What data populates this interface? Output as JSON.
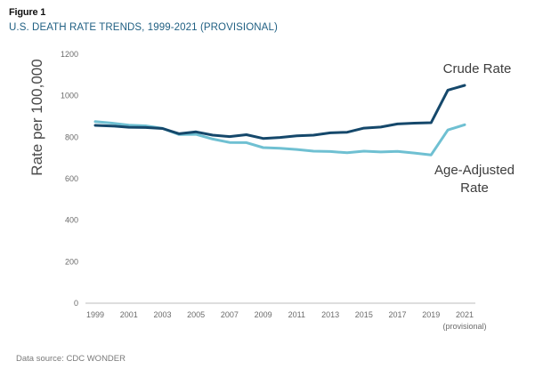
{
  "figure_label": "Figure 1",
  "title": "U.S. DEATH RATE TRENDS, 1999-2021 (PROVISIONAL)",
  "source": "Data source: CDC WONDER",
  "chart_data": {
    "type": "line",
    "title": "U.S. DEATH RATE TRENDS, 1999-2021 (PROVISIONAL)",
    "ylabel": "Rate per 100,000",
    "xlabel": "",
    "ylim": [
      0,
      1200
    ],
    "yticks": [
      "0",
      "200",
      "400",
      "600",
      "800",
      "1000",
      "1200"
    ],
    "xlim": [
      1999,
      2021
    ],
    "xticks": [
      "1999",
      "2001",
      "2003",
      "2005",
      "2007",
      "2009",
      "2011",
      "2013",
      "2015",
      "2017",
      "2019",
      "2021"
    ],
    "x_note": "(provisional)",
    "grid": false,
    "x": [
      1999,
      2000,
      2001,
      2002,
      2003,
      2004,
      2005,
      2006,
      2007,
      2008,
      2009,
      2010,
      2011,
      2012,
      2013,
      2014,
      2015,
      2016,
      2017,
      2018,
      2019,
      2020,
      2021
    ],
    "series": [
      {
        "name": "Crude Rate",
        "label_lines": [
          "Crude Rate"
        ],
        "color": "#15486b",
        "values": [
          857,
          854,
          848,
          847,
          842,
          817,
          826,
          810,
          803,
          812,
          794,
          799,
          807,
          810,
          821,
          824,
          844,
          849,
          864,
          868,
          870,
          1027,
          1050
        ]
      },
      {
        "name": "Age-Adjusted Rate",
        "label_lines": [
          "Age-Adjusted",
          "Rate"
        ],
        "color": "#6fc0d2",
        "values": [
          875,
          868,
          858,
          855,
          843,
          813,
          814,
          791,
          775,
          774,
          750,
          747,
          741,
          733,
          731,
          725,
          733,
          729,
          732,
          724,
          715,
          835,
          860
        ]
      }
    ]
  }
}
